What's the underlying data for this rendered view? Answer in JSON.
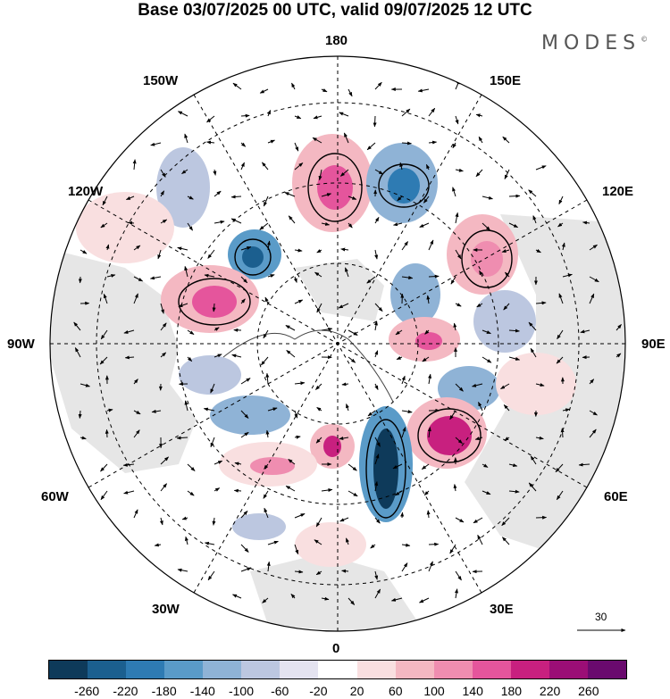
{
  "title": "Base 03/07/2025 00 UTC, valid 09/07/2025 12 UTC",
  "brand": "MODES",
  "brand_mark": "©",
  "longitude_labels": {
    "top": "180",
    "bottom": "0",
    "left": "90W",
    "right": "90E",
    "nw1": "150W",
    "nw2": "120W",
    "ne1": "150E",
    "ne2": "120E",
    "sw1": "60W",
    "sw2": "30W",
    "se1": "60E",
    "se2": "30E"
  },
  "vector_scale": {
    "label": "30"
  },
  "colorbar": {
    "colors": [
      "#0e3a5a",
      "#1b5f8f",
      "#2e7bb3",
      "#5a9bc8",
      "#8fb3d6",
      "#bcc7e0",
      "#e4e3f0",
      "#ffffff",
      "#f9dfe0",
      "#f4b8c2",
      "#ef8db0",
      "#e5559c",
      "#c8207f",
      "#9b0e76",
      "#6a0a6e"
    ],
    "labels": [
      "-260",
      "-220",
      "-180",
      "-140",
      "-100",
      "-60",
      "-20",
      "20",
      "60",
      "100",
      "140",
      "180",
      "220",
      "260"
    ]
  }
}
